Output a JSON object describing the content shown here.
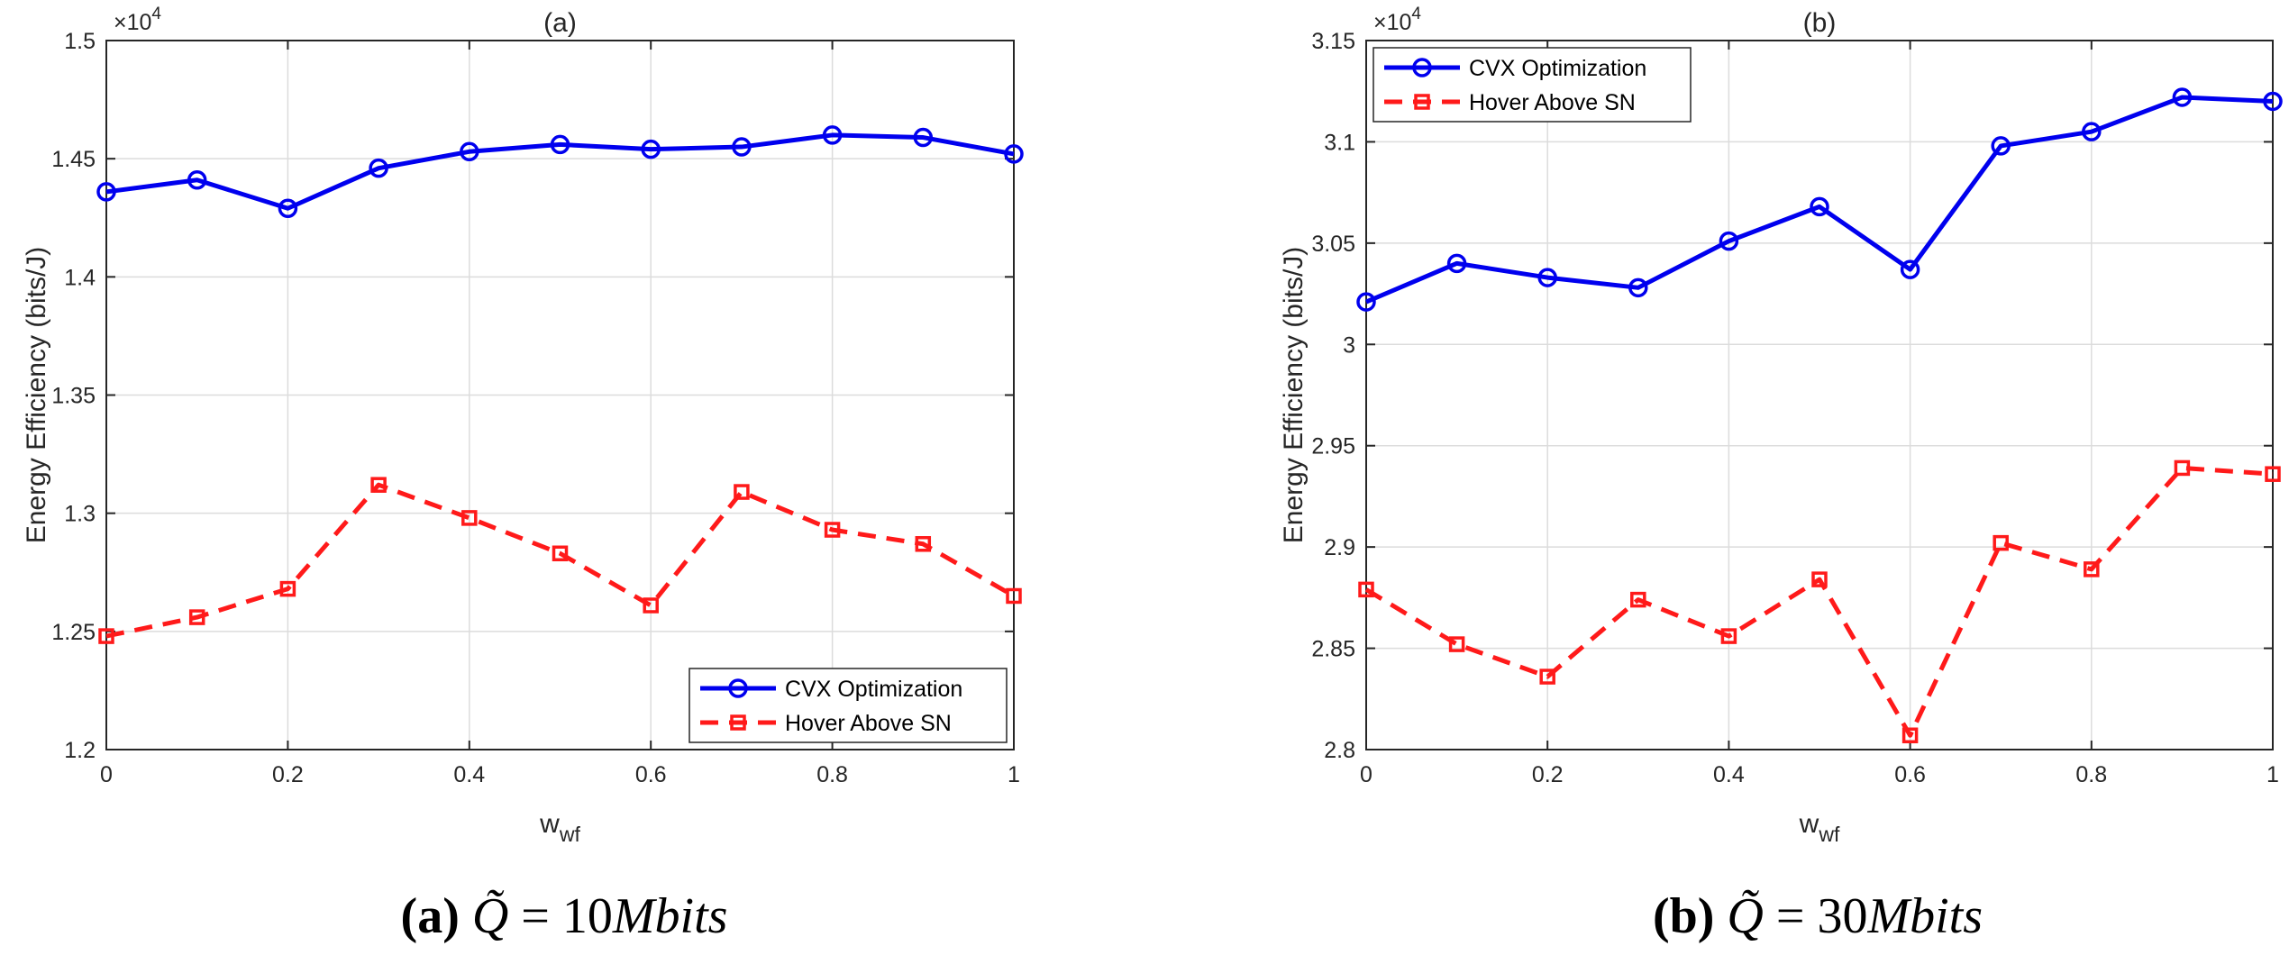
{
  "colors": {
    "cvx": "#0000ee",
    "hover": "#ff1a1a",
    "grid": "#dcdcdc",
    "axis": "#262626"
  },
  "chart_data": [
    {
      "type": "line",
      "title": "(a)",
      "xlabel": "w_wf",
      "xlabel_main": "w",
      "xlabel_sub": "wf",
      "ylabel": "Energy Efficiency (bits/J)",
      "y_exponent_base": "×10",
      "y_exponent_power": "4",
      "xlim": [
        0,
        1
      ],
      "ylim": [
        1.2,
        1.5
      ],
      "x_ticks": [
        0,
        0.2,
        0.4,
        0.6,
        0.8,
        1
      ],
      "x_tick_labels": [
        "0",
        "0.2",
        "0.4",
        "0.6",
        "0.8",
        "1"
      ],
      "y_ticks": [
        1.2,
        1.25,
        1.3,
        1.35,
        1.4,
        1.45,
        1.5
      ],
      "y_tick_labels": [
        "1.2",
        "1.25",
        "1.3",
        "1.35",
        "1.4",
        "1.45",
        "1.5"
      ],
      "grid": true,
      "legend_position": "bottom-right",
      "x": [
        0,
        0.1,
        0.2,
        0.3,
        0.4,
        0.5,
        0.6,
        0.7,
        0.8,
        0.9,
        1
      ],
      "series": [
        {
          "name": "CVX Optimization",
          "marker": "circle",
          "style": "solid",
          "color_key": "cvx",
          "values": [
            1.436,
            1.441,
            1.429,
            1.446,
            1.453,
            1.456,
            1.454,
            1.455,
            1.46,
            1.459,
            1.452
          ]
        },
        {
          "name": "Hover Above SN",
          "marker": "square",
          "style": "dashed",
          "color_key": "hover",
          "values": [
            1.248,
            1.256,
            1.268,
            1.312,
            1.298,
            1.283,
            1.261,
            1.309,
            1.293,
            1.287,
            1.265
          ]
        }
      ],
      "caption": {
        "label": "(a)",
        "symbol": "Q̃",
        "equals": " = ",
        "value": "10",
        "unit": "Mbits"
      }
    },
    {
      "type": "line",
      "title": "(b)",
      "xlabel": "w_wf",
      "xlabel_main": "w",
      "xlabel_sub": "wf",
      "ylabel": "Energy Efficiency (bits/J)",
      "y_exponent_base": "×10",
      "y_exponent_power": "4",
      "xlim": [
        0,
        1
      ],
      "ylim": [
        2.8,
        3.15
      ],
      "x_ticks": [
        0,
        0.2,
        0.4,
        0.6,
        0.8,
        1
      ],
      "x_tick_labels": [
        "0",
        "0.2",
        "0.4",
        "0.6",
        "0.8",
        "1"
      ],
      "y_ticks": [
        2.8,
        2.85,
        2.9,
        2.95,
        3.0,
        3.05,
        3.1,
        3.15
      ],
      "y_tick_labels": [
        "2.8",
        "2.85",
        "2.9",
        "2.95",
        "3",
        "3.05",
        "3.1",
        "3.15"
      ],
      "grid": true,
      "legend_position": "top-left",
      "x": [
        0,
        0.1,
        0.2,
        0.3,
        0.4,
        0.5,
        0.6,
        0.7,
        0.8,
        0.9,
        1
      ],
      "series": [
        {
          "name": "CVX Optimization",
          "marker": "circle",
          "style": "solid",
          "color_key": "cvx",
          "values": [
            3.021,
            3.04,
            3.033,
            3.028,
            3.051,
            3.068,
            3.037,
            3.098,
            3.105,
            3.122,
            3.12
          ]
        },
        {
          "name": "Hover Above SN",
          "marker": "square",
          "style": "dashed",
          "color_key": "hover",
          "values": [
            2.879,
            2.852,
            2.836,
            2.874,
            2.856,
            2.884,
            2.807,
            2.902,
            2.889,
            2.939,
            2.936
          ]
        }
      ],
      "caption": {
        "label": "(b)",
        "symbol": "Q̃",
        "equals": " = ",
        "value": "30",
        "unit": "Mbits"
      }
    }
  ]
}
